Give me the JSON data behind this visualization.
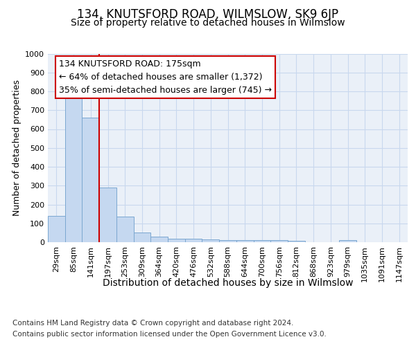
{
  "title": "134, KNUTSFORD ROAD, WILMSLOW, SK9 6JP",
  "subtitle": "Size of property relative to detached houses in Wilmslow",
  "xlabel": "Distribution of detached houses by size in Wilmslow",
  "ylabel": "Number of detached properties",
  "footer_line1": "Contains HM Land Registry data © Crown copyright and database right 2024.",
  "footer_line2": "Contains public sector information licensed under the Open Government Licence v3.0.",
  "bar_labels": [
    "29sqm",
    "85sqm",
    "141sqm",
    "197sqm",
    "253sqm",
    "309sqm",
    "364sqm",
    "420sqm",
    "476sqm",
    "532sqm",
    "588sqm",
    "644sqm",
    "700sqm",
    "756sqm",
    "812sqm",
    "868sqm",
    "923sqm",
    "979sqm",
    "1035sqm",
    "1091sqm",
    "1147sqm"
  ],
  "bar_values": [
    140,
    780,
    660,
    290,
    135,
    52,
    30,
    18,
    18,
    15,
    10,
    10,
    10,
    10,
    8,
    0,
    0,
    10,
    0,
    0,
    0
  ],
  "bar_color": "#c5d8f0",
  "bar_edge_color": "#7ba7d0",
  "grid_color": "#c8d8ee",
  "bg_color": "#eaf0f8",
  "ylim": [
    0,
    1000
  ],
  "yticks": [
    0,
    100,
    200,
    300,
    400,
    500,
    600,
    700,
    800,
    900,
    1000
  ],
  "red_line_x": 2.5,
  "annotation_line1": "134 KNUTSFORD ROAD: 175sqm",
  "annotation_line2": "← 64% of detached houses are smaller (1,372)",
  "annotation_line3": "35% of semi-detached houses are larger (745) →",
  "red_line_color": "#cc0000",
  "title_fontsize": 12,
  "subtitle_fontsize": 10,
  "tick_fontsize": 8,
  "ylabel_fontsize": 9,
  "xlabel_fontsize": 10,
  "annotation_fontsize": 9,
  "footer_fontsize": 7.5
}
